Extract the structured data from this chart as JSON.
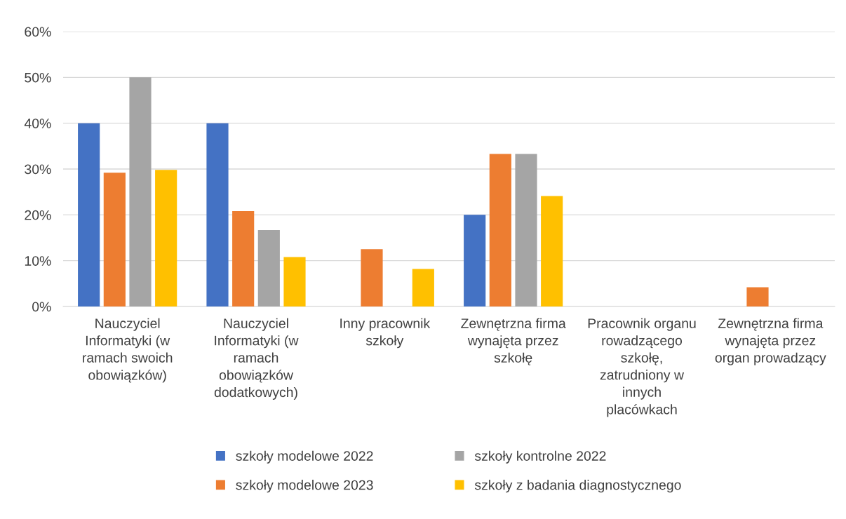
{
  "chart_data": {
    "type": "bar",
    "categories": [
      "Nauczyciel Informatyki (w ramach swoich obowiązków)",
      "Nauczyciel Informatyki (w ramach obowiązków dodatkowych)",
      "Inny pracownik szkoły",
      "Zewnętrzna firma wynajęta przez szkołę",
      "Pracownik organu rowadzącego szkołę, zatrudniony w innych placówkach",
      "Zewnętrzna firma wynajęta przez organ prowadzący"
    ],
    "series": [
      {
        "name": "szkoły modelowe 2022",
        "color": "#4472c4",
        "values": [
          40,
          40,
          0,
          20,
          0,
          0
        ]
      },
      {
        "name": "szkoły modelowe 2023",
        "color": "#ed7d31",
        "values": [
          29.2,
          20.8,
          12.5,
          33.3,
          0,
          4.2
        ]
      },
      {
        "name": "szkoły kontrolne 2022",
        "color": "#a5a5a5",
        "values": [
          50,
          16.7,
          0,
          33.3,
          0,
          0
        ]
      },
      {
        "name": "szkoły z badania diagnostycznego",
        "color": "#ffc000",
        "values": [
          29.8,
          10.8,
          8.2,
          24.1,
          0,
          0
        ]
      }
    ],
    "ylim": [
      0,
      60
    ],
    "yticks": [
      {
        "value": 0,
        "label": "0%"
      },
      {
        "value": 10,
        "label": "10%"
      },
      {
        "value": 20,
        "label": "20%"
      },
      {
        "value": 30,
        "label": "30%"
      },
      {
        "value": 40,
        "label": "40%"
      },
      {
        "value": 50,
        "label": "50%"
      },
      {
        "value": 60,
        "label": "60%"
      }
    ],
    "grid": "y",
    "legend": "bottom"
  }
}
